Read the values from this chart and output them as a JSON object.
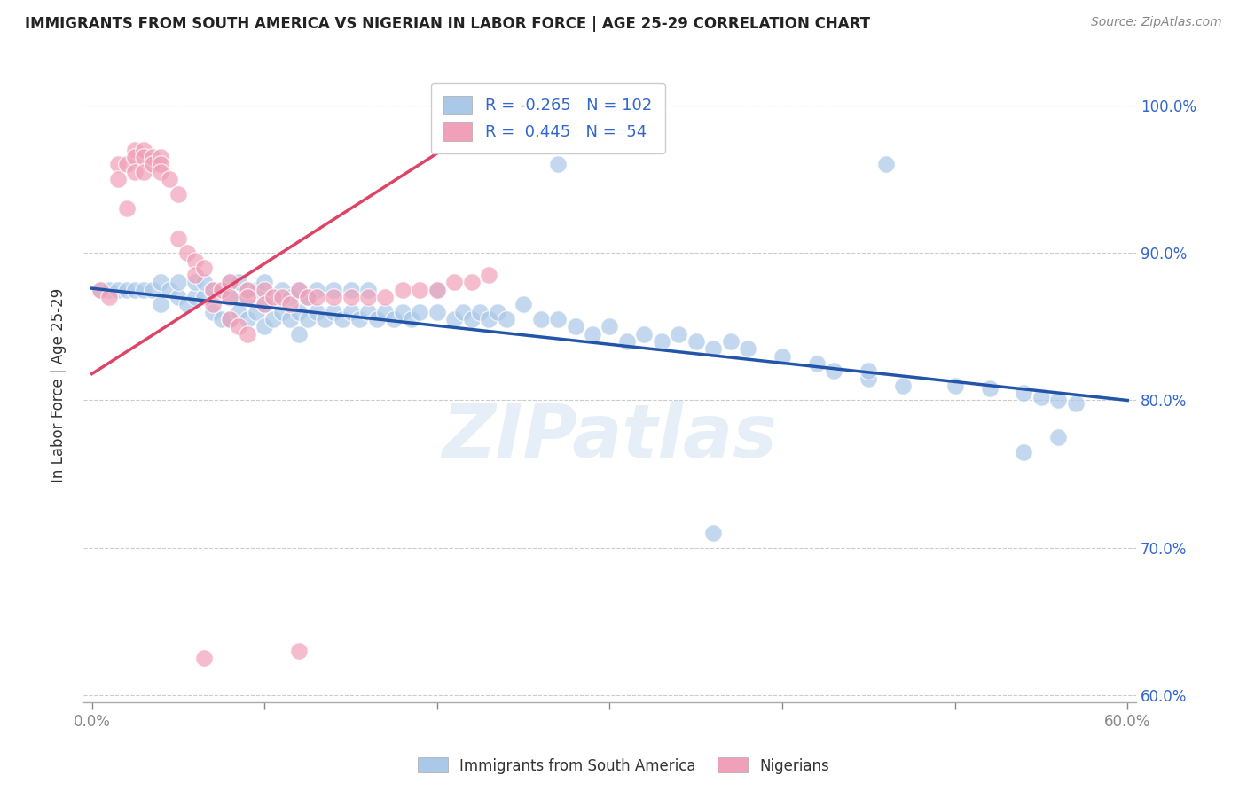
{
  "title": "IMMIGRANTS FROM SOUTH AMERICA VS NIGERIAN IN LABOR FORCE | AGE 25-29 CORRELATION CHART",
  "source": "Source: ZipAtlas.com",
  "ylabel": "In Labor Force | Age 25-29",
  "xlim": [
    -0.005,
    0.605
  ],
  "ylim": [
    0.595,
    1.025
  ],
  "xticks": [
    0.0,
    0.1,
    0.2,
    0.3,
    0.4,
    0.5,
    0.6
  ],
  "yticks": [
    0.6,
    0.7,
    0.8,
    0.9,
    1.0
  ],
  "ytick_labels": [
    "60.0%",
    "70.0%",
    "80.0%",
    "90.0%",
    "100.0%"
  ],
  "xtick_labels_show": [
    "0.0%",
    "60.0%"
  ],
  "legend_r_blue": "-0.265",
  "legend_n_blue": "102",
  "legend_r_pink": "0.445",
  "legend_n_pink": "54",
  "blue_color": "#aac8e8",
  "pink_color": "#f0a0b8",
  "blue_line_color": "#2255aa",
  "pink_line_color": "#dd4466",
  "watermark": "ZIPatlas",
  "blue_line_x0": 0.0,
  "blue_line_y0": 0.876,
  "blue_line_x1": 0.6,
  "blue_line_y1": 0.8,
  "pink_line_x0": 0.0,
  "pink_line_y0": 0.818,
  "pink_line_x1": 0.25,
  "pink_line_y1": 1.005,
  "blue_x": [
    0.005,
    0.01,
    0.015,
    0.02,
    0.025,
    0.03,
    0.035,
    0.04,
    0.04,
    0.045,
    0.05,
    0.05,
    0.055,
    0.06,
    0.06,
    0.065,
    0.065,
    0.07,
    0.07,
    0.075,
    0.075,
    0.08,
    0.08,
    0.08,
    0.085,
    0.085,
    0.09,
    0.09,
    0.09,
    0.095,
    0.095,
    0.1,
    0.1,
    0.1,
    0.105,
    0.105,
    0.11,
    0.11,
    0.115,
    0.115,
    0.12,
    0.12,
    0.12,
    0.125,
    0.125,
    0.13,
    0.13,
    0.135,
    0.14,
    0.14,
    0.145,
    0.15,
    0.15,
    0.155,
    0.16,
    0.16,
    0.165,
    0.17,
    0.175,
    0.18,
    0.185,
    0.19,
    0.2,
    0.2,
    0.21,
    0.215,
    0.22,
    0.225,
    0.23,
    0.235,
    0.24,
    0.25,
    0.26,
    0.27,
    0.28,
    0.29,
    0.3,
    0.31,
    0.32,
    0.33,
    0.34,
    0.35,
    0.36,
    0.37,
    0.38,
    0.4,
    0.42,
    0.43,
    0.45,
    0.47,
    0.5,
    0.52,
    0.54,
    0.55,
    0.56,
    0.57,
    0.27,
    0.46,
    0.36,
    0.45,
    0.54,
    0.56
  ],
  "blue_y": [
    0.875,
    0.875,
    0.875,
    0.875,
    0.875,
    0.875,
    0.875,
    0.865,
    0.88,
    0.875,
    0.87,
    0.88,
    0.865,
    0.87,
    0.88,
    0.87,
    0.88,
    0.86,
    0.875,
    0.855,
    0.875,
    0.87,
    0.855,
    0.88,
    0.86,
    0.88,
    0.875,
    0.855,
    0.87,
    0.86,
    0.875,
    0.865,
    0.85,
    0.88,
    0.855,
    0.87,
    0.86,
    0.875,
    0.855,
    0.87,
    0.86,
    0.845,
    0.875,
    0.855,
    0.87,
    0.86,
    0.875,
    0.855,
    0.86,
    0.875,
    0.855,
    0.86,
    0.875,
    0.855,
    0.86,
    0.875,
    0.855,
    0.86,
    0.855,
    0.86,
    0.855,
    0.86,
    0.86,
    0.875,
    0.855,
    0.86,
    0.855,
    0.86,
    0.855,
    0.86,
    0.855,
    0.865,
    0.855,
    0.855,
    0.85,
    0.845,
    0.85,
    0.84,
    0.845,
    0.84,
    0.845,
    0.84,
    0.835,
    0.84,
    0.835,
    0.83,
    0.825,
    0.82,
    0.815,
    0.81,
    0.81,
    0.808,
    0.805,
    0.802,
    0.8,
    0.798,
    0.96,
    0.96,
    0.71,
    0.82,
    0.765,
    0.775
  ],
  "pink_x": [
    0.005,
    0.01,
    0.015,
    0.015,
    0.02,
    0.02,
    0.025,
    0.025,
    0.025,
    0.03,
    0.03,
    0.03,
    0.035,
    0.035,
    0.04,
    0.04,
    0.04,
    0.045,
    0.05,
    0.05,
    0.055,
    0.06,
    0.06,
    0.065,
    0.07,
    0.07,
    0.075,
    0.08,
    0.08,
    0.09,
    0.09,
    0.1,
    0.1,
    0.105,
    0.11,
    0.115,
    0.12,
    0.125,
    0.13,
    0.14,
    0.15,
    0.16,
    0.17,
    0.18,
    0.19,
    0.2,
    0.21,
    0.22,
    0.23,
    0.065,
    0.12,
    0.08,
    0.085,
    0.09
  ],
  "pink_y": [
    0.875,
    0.87,
    0.96,
    0.95,
    0.96,
    0.93,
    0.97,
    0.965,
    0.955,
    0.97,
    0.965,
    0.955,
    0.965,
    0.96,
    0.965,
    0.96,
    0.955,
    0.95,
    0.94,
    0.91,
    0.9,
    0.895,
    0.885,
    0.89,
    0.875,
    0.865,
    0.875,
    0.88,
    0.87,
    0.875,
    0.87,
    0.875,
    0.865,
    0.87,
    0.87,
    0.865,
    0.875,
    0.87,
    0.87,
    0.87,
    0.87,
    0.87,
    0.87,
    0.875,
    0.875,
    0.875,
    0.88,
    0.88,
    0.885,
    0.625,
    0.63,
    0.855,
    0.85,
    0.845
  ]
}
